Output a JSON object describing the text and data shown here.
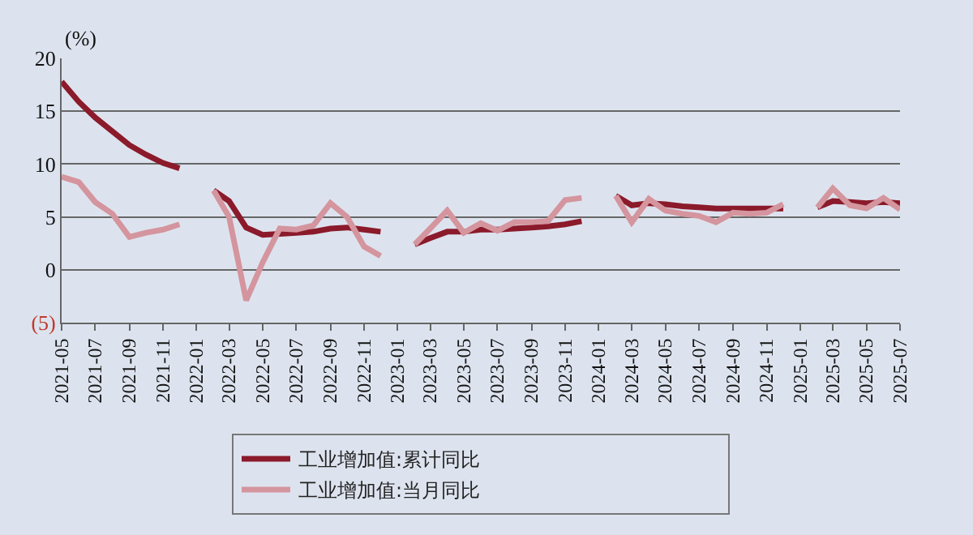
{
  "chart_data": {
    "type": "line",
    "ylabel": "(%)",
    "x": [
      "2021-05",
      "2021-06",
      "2021-07",
      "2021-08",
      "2021-09",
      "2021-10",
      "2021-11",
      "2021-12",
      "2022-01",
      "2022-02",
      "2022-03",
      "2022-04",
      "2022-05",
      "2022-06",
      "2022-07",
      "2022-08",
      "2022-09",
      "2022-10",
      "2022-11",
      "2022-12",
      "2023-01",
      "2023-02",
      "2023-03",
      "2023-04",
      "2023-05",
      "2023-06",
      "2023-07",
      "2023-08",
      "2023-09",
      "2023-10",
      "2023-11",
      "2023-12",
      "2024-01",
      "2024-02",
      "2024-03",
      "2024-04",
      "2024-05",
      "2024-06",
      "2024-07",
      "2024-08",
      "2024-09",
      "2024-10",
      "2024-11",
      "2024-12",
      "2025-01",
      "2025-02",
      "2025-03",
      "2025-04",
      "2025-05",
      "2025-06",
      "2025-07"
    ],
    "series": [
      {
        "name": "工业增加值:累计同比",
        "color": "#8b1a2b",
        "values": [
          17.8,
          15.9,
          14.4,
          13.1,
          11.8,
          10.9,
          10.1,
          9.6,
          null,
          7.5,
          6.5,
          4.0,
          3.3,
          3.4,
          3.5,
          3.6,
          3.9,
          4.0,
          3.8,
          3.6,
          null,
          2.4,
          3.0,
          3.6,
          3.6,
          3.8,
          3.8,
          3.9,
          4.0,
          4.1,
          4.3,
          4.6,
          null,
          7.0,
          6.1,
          6.3,
          6.2,
          6.0,
          5.9,
          5.8,
          5.8,
          5.8,
          5.8,
          5.8,
          null,
          5.9,
          6.5,
          6.4,
          6.3,
          6.4,
          6.3
        ]
      },
      {
        "name": "工业增加值:当月同比",
        "color": "#d4959e",
        "values": [
          8.8,
          8.3,
          6.4,
          5.3,
          3.1,
          3.5,
          3.8,
          4.3,
          null,
          7.5,
          5.0,
          -2.9,
          0.7,
          3.9,
          3.8,
          4.2,
          6.3,
          5.0,
          2.2,
          1.3,
          null,
          2.4,
          3.9,
          5.6,
          3.5,
          4.4,
          3.7,
          4.5,
          4.5,
          4.6,
          6.6,
          6.8,
          null,
          7.0,
          4.5,
          6.7,
          5.6,
          5.3,
          5.1,
          4.5,
          5.4,
          5.3,
          5.4,
          6.2,
          null,
          5.9,
          7.7,
          6.1,
          5.8,
          6.8,
          5.7
        ]
      }
    ],
    "xlim": [
      "2021-05",
      "2025-07"
    ],
    "xticks": [
      "2021-05",
      "2021-07",
      "2021-09",
      "2021-11",
      "2022-01",
      "2022-03",
      "2022-05",
      "2022-07",
      "2022-09",
      "2022-11",
      "2023-01",
      "2023-03",
      "2023-05",
      "2023-07",
      "2023-09",
      "2023-11",
      "2024-01",
      "2024-03",
      "2024-05",
      "2024-07",
      "2024-09",
      "2024-11",
      "2025-01",
      "2025-03",
      "2025-05",
      "2025-07"
    ],
    "ylim": [
      -5,
      20
    ],
    "yticks": [
      {
        "value": -5,
        "label": "(5)"
      },
      0,
      5,
      10,
      15,
      20
    ],
    "grid": "y",
    "legend": "bottom",
    "marker": "none",
    "line_style": "solid"
  }
}
